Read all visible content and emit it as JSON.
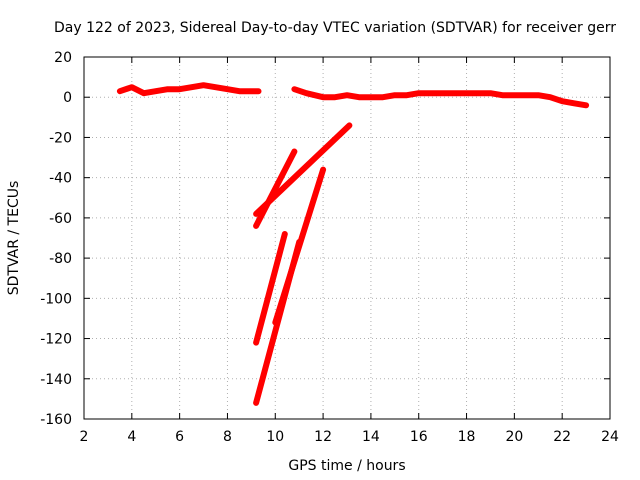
{
  "chart_data": {
    "type": "line",
    "title": "Day 122 of 2023, Sidereal Day-to-day VTEC variation (SDTVAR) for receiver gerr",
    "xlabel": "GPS time / hours",
    "ylabel": "SDTVAR / TECUs",
    "xlim": [
      2,
      24
    ],
    "ylim": [
      -160,
      20
    ],
    "xticks": [
      2,
      4,
      6,
      8,
      10,
      12,
      14,
      16,
      18,
      20,
      22,
      24
    ],
    "yticks": [
      20,
      0,
      -20,
      -40,
      -60,
      -80,
      -100,
      -120,
      -140,
      -160
    ],
    "grid": true,
    "color": "#ff0000",
    "series": [
      {
        "x": [
          3.5,
          4.0,
          4.5,
          5.0,
          5.5,
          6.0,
          6.5,
          7.0,
          7.5,
          8.0,
          8.5,
          9.0,
          9.3
        ],
        "y": [
          3,
          5,
          2,
          3,
          4,
          4,
          5,
          6,
          5,
          4,
          3,
          3,
          3
        ]
      },
      {
        "x": [
          10.8,
          11.3,
          12.0,
          12.5,
          13.0,
          13.5,
          14.0,
          14.5,
          15.0,
          15.5,
          16.0,
          16.5,
          17.0,
          17.5,
          18.0,
          18.5,
          19.0,
          19.5,
          20.0,
          20.5,
          21.0,
          21.5,
          22.0,
          22.5,
          23.0
        ],
        "y": [
          4,
          2,
          0,
          0,
          1,
          0,
          0,
          0,
          1,
          1,
          2,
          2,
          2,
          2,
          2,
          2,
          2,
          1,
          1,
          1,
          1,
          0,
          -2,
          -3,
          -4
        ]
      },
      {
        "x": [
          9.2,
          13.1
        ],
        "y": [
          -58,
          -14
        ]
      },
      {
        "x": [
          9.2,
          10.8
        ],
        "y": [
          -64,
          -27
        ]
      },
      {
        "x": [
          9.2,
          10.4
        ],
        "y": [
          -122,
          -68
        ]
      },
      {
        "x": [
          9.2,
          11.0
        ],
        "y": [
          -152,
          -72
        ]
      },
      {
        "x": [
          10.0,
          12.0
        ],
        "y": [
          -112,
          -36
        ]
      }
    ]
  }
}
